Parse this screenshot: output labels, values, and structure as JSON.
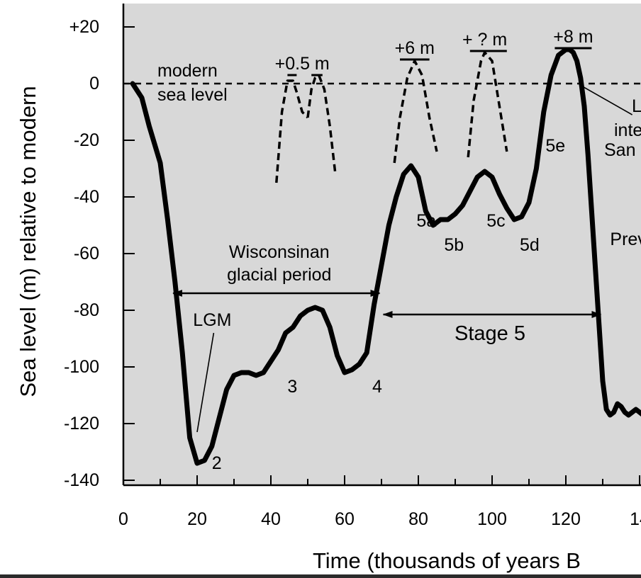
{
  "chart_data": {
    "type": "line",
    "ylabel": "Sea level (m) relative to modern",
    "xlabel": "Time (thousands of years B",
    "xlim": [
      0,
      143
    ],
    "ylim": [
      -140,
      28
    ],
    "x_ticks": [
      "0",
      "20",
      "40",
      "60",
      "80",
      "100",
      "120",
      "14"
    ],
    "y_ticks": [
      "+20",
      "0",
      "-20",
      "-40",
      "-60",
      "-80",
      "-100",
      "-120",
      "-140"
    ],
    "colors": {
      "plot_bg": "#d8d8d8",
      "line": "#000000",
      "frame": "#2b2b2b"
    },
    "series": [
      {
        "style": "solid",
        "x": [
          2.5,
          3.5,
          5,
          7,
          10,
          12,
          14,
          16,
          18,
          20,
          22,
          24,
          26,
          28,
          30,
          32,
          34,
          36,
          38,
          40,
          42,
          44,
          46,
          48,
          50,
          52,
          54,
          56,
          58,
          60,
          62,
          64,
          66,
          68,
          70,
          72,
          74,
          76,
          78,
          80,
          82,
          84,
          86,
          88,
          90,
          92,
          94,
          96,
          98,
          100,
          102,
          104,
          106,
          108,
          110,
          112,
          114,
          116,
          118,
          120,
          121,
          122,
          123,
          124,
          125,
          126,
          127,
          128,
          129,
          130,
          131,
          132,
          133,
          134,
          135,
          136,
          137,
          138,
          139,
          140,
          141,
          142,
          143
        ],
        "y": [
          0,
          -2,
          -5,
          -15,
          -28,
          -48,
          -70,
          -95,
          -125,
          -134,
          -133,
          -128,
          -118,
          -108,
          -103,
          -102,
          -102,
          -103,
          -102,
          -98,
          -94,
          -88,
          -86,
          -82,
          -80,
          -79,
          -80,
          -86,
          -96,
          -102,
          -101,
          -99,
          -95,
          -78,
          -64,
          -50,
          -40,
          -32,
          -29,
          -33,
          -45,
          -50,
          -48,
          -48,
          -46,
          -43,
          -38,
          -33,
          -31,
          -33,
          -39,
          -44,
          -48,
          -47,
          -42,
          -30,
          -10,
          3,
          10,
          12,
          12,
          11,
          8,
          2,
          -8,
          -25,
          -45,
          -65,
          -85,
          -105,
          -115,
          -117,
          -116,
          -113,
          -114,
          -116,
          -117,
          -116,
          -115,
          -116,
          -117,
          -116,
          -117
        ]
      },
      {
        "style": "dashed",
        "x": [
          41.5,
          43,
          44.5,
          46,
          47,
          48.5,
          50
        ],
        "y": [
          -35,
          -10,
          1,
          1,
          -3,
          -10,
          -12
        ]
      },
      {
        "style": "dashed",
        "x": [
          50,
          51,
          52,
          53,
          54.5,
          56,
          57.5
        ],
        "y": [
          -12,
          -2,
          2,
          3,
          -2,
          -15,
          -32
        ]
      },
      {
        "style": "dashed",
        "x": [
          73.5,
          75,
          77,
          79,
          81,
          83,
          85
        ],
        "y": [
          -28,
          -12,
          2,
          8,
          3,
          -12,
          -24
        ]
      },
      {
        "style": "dashed",
        "x": [
          93.5,
          95,
          97,
          98,
          100,
          102,
          104
        ],
        "y": [
          -26,
          -6,
          8,
          11,
          8,
          -8,
          -24
        ]
      }
    ],
    "reference_line": {
      "y": 0,
      "style": "dashed",
      "label_lines": [
        "modern",
        "sea level"
      ]
    },
    "highstand_labels": [
      {
        "text": "+0.5 m",
        "x": 48.5,
        "y": 3,
        "bars": [
          [
            44.5,
            47
          ],
          [
            51,
            54
          ]
        ]
      },
      {
        "text": "+6 m",
        "x": 79,
        "y": 8.5,
        "bars": [
          [
            75,
            83
          ]
        ]
      },
      {
        "text": "+ ? m",
        "x": 98,
        "y": 11.5,
        "bars": [
          [
            94,
            104
          ]
        ]
      },
      {
        "text": "+8 m",
        "x": 122,
        "y": 12.5,
        "bars": [
          [
            117,
            127
          ]
        ]
      }
    ],
    "point_labels": [
      {
        "text": "2",
        "x": 24,
        "y": -134
      },
      {
        "text": "3",
        "x": 44.5,
        "y": -107
      },
      {
        "text": "4",
        "x": 67.5,
        "y": -107
      },
      {
        "text": "5a",
        "x": 79.5,
        "y": -48.5
      },
      {
        "text": "5b",
        "x": 87,
        "y": -57
      },
      {
        "text": "5c",
        "x": 98.5,
        "y": -48.5
      },
      {
        "text": "5d",
        "x": 107.5,
        "y": -57
      },
      {
        "text": "5e",
        "x": 114.5,
        "y": -22
      },
      {
        "text": "Prev",
        "x": 132,
        "y": -55
      }
    ],
    "annotations": [
      {
        "lines": [
          "Wisconsinan",
          "glacial period"
        ],
        "span": [
          13.5,
          69.5
        ],
        "y": -74
      },
      {
        "lines": [
          "Stage 5"
        ],
        "span": [
          70.5,
          129.5
        ],
        "y": -81.5,
        "text_y": -88
      },
      {
        "lines": [
          "LGM"
        ],
        "pointer_from": [
          24.5,
          -88
        ],
        "pointer_to": [
          20,
          -123
        ]
      },
      {
        "lines": [
          "L",
          "inte",
          "San"
        ],
        "pointer_from": [
          138,
          -11
        ],
        "pointer_to": [
          124.5,
          -1
        ]
      }
    ]
  }
}
